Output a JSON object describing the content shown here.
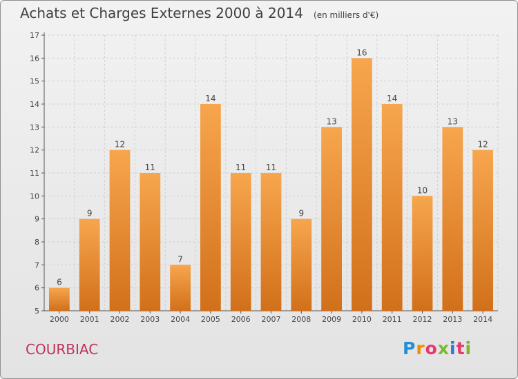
{
  "header": {
    "title": "Achats et Charges Externes 2000 à 2014",
    "unit": "(en milliers d'€)"
  },
  "footer": {
    "commune": "COURBIAC",
    "logo": "Proxiti"
  },
  "colors": {
    "bar_light": "#f7a64e",
    "bar_dark": "#d2701a",
    "accent": "#c0305a"
  },
  "chart_data": {
    "type": "bar",
    "title": "Achats et Charges Externes 2000 à 2014",
    "subtitle": "(en milliers d'€)",
    "categories": [
      "2000",
      "2001",
      "2002",
      "2003",
      "2004",
      "2005",
      "2006",
      "2007",
      "2008",
      "2009",
      "2010",
      "2011",
      "2012",
      "2013",
      "2014"
    ],
    "values": [
      6,
      9,
      12,
      11,
      7,
      14,
      11,
      11,
      9,
      13,
      16,
      14,
      10,
      13,
      12
    ],
    "ylim": [
      5,
      17
    ],
    "yticks": [
      5,
      6,
      7,
      8,
      9,
      10,
      11,
      12,
      13,
      14,
      15,
      16,
      17
    ],
    "grid": true,
    "legend": "none"
  }
}
